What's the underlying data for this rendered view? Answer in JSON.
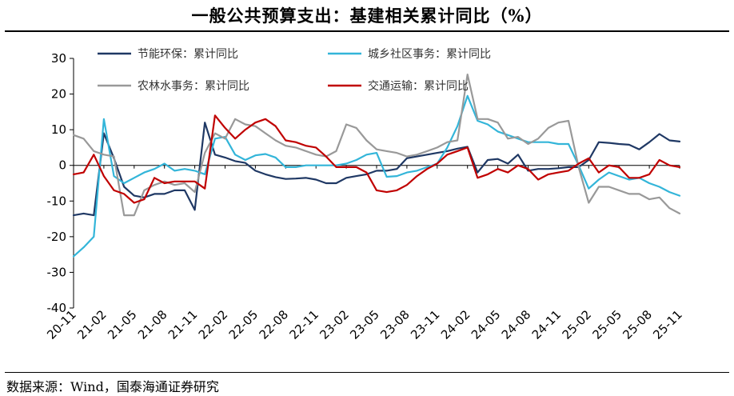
{
  "title": "一般公共预算支出：基建相关累计同比（%）",
  "source": "数据来源：Wind，国泰海通证券研究",
  "chart_data": {
    "type": "line",
    "ylim": [
      -40,
      30
    ],
    "yticks": [
      30,
      20,
      10,
      0,
      -10,
      -20,
      -30,
      -40
    ],
    "x": [
      "20-11",
      "20-12",
      "21-01",
      "21-02",
      "21-03",
      "21-04",
      "21-05",
      "21-06",
      "21-07",
      "21-08",
      "21-09",
      "21-10",
      "21-11",
      "21-12",
      "22-01",
      "22-02",
      "22-03",
      "22-04",
      "22-05",
      "22-06",
      "22-07",
      "22-08",
      "22-09",
      "22-10",
      "22-11",
      "22-12",
      "23-01",
      "23-02",
      "23-03",
      "23-04",
      "23-05",
      "23-06",
      "23-07",
      "23-08",
      "23-09",
      "23-10",
      "23-11",
      "23-12",
      "24-01",
      "24-02",
      "24-03",
      "24-04",
      "24-05",
      "24-06",
      "24-07",
      "24-08",
      "24-09",
      "24-10",
      "24-11",
      "24-12",
      "25-01",
      "25-02",
      "25-03",
      "25-04",
      "25-05",
      "25-06",
      "25-07",
      "25-08",
      "25-09",
      "25-10",
      "25-11"
    ],
    "xtick_labels": [
      "20-11",
      "21-02",
      "21-05",
      "21-08",
      "21-11",
      "22-02",
      "22-05",
      "22-08",
      "22-11",
      "23-02",
      "23-05",
      "23-08",
      "23-11",
      "24-02",
      "24-05",
      "24-08",
      "24-11",
      "25-02",
      "25-05",
      "25-08",
      "25-11"
    ],
    "legend": "top",
    "grid": false,
    "series": [
      {
        "name": "节能环保：累计同比",
        "color": "#1f3864",
        "values": [
          -14,
          -13.5,
          -14,
          9,
          2,
          -6,
          -8.5,
          -9,
          -8,
          -8,
          -7,
          -7,
          -12.5,
          12,
          3,
          2.2,
          1.2,
          0.7,
          -1.5,
          -2.5,
          -3.3,
          -3.8,
          -3.7,
          -3.5,
          -4,
          -5,
          -5,
          -3.5,
          -3,
          -2.5,
          -1.5,
          -1.5,
          -1,
          2,
          2.5,
          3,
          3.5,
          4,
          4.7,
          5.2,
          -2,
          1.5,
          1.8,
          0.5,
          3,
          -1.5,
          -1,
          -1,
          -0.8,
          -0.5,
          -0.5,
          1.5,
          6.5,
          6.3,
          6,
          5.8,
          4.5,
          6.5,
          8.8,
          7,
          6.7
        ]
      },
      {
        "name": "城乡社区事务：累计同比",
        "color": "#33b5d9",
        "values": [
          -25.5,
          -23,
          -20,
          13,
          -3,
          -5,
          -3.5,
          -2,
          -1,
          0.5,
          -1.5,
          -1,
          -1.5,
          -2.5,
          7.5,
          8,
          3,
          1.5,
          2.8,
          3.2,
          2.2,
          -0.5,
          -0.5,
          0,
          0,
          0,
          0,
          0.5,
          1.5,
          3,
          3.5,
          -3.2,
          -3,
          -2,
          -1.5,
          -0.5,
          0.5,
          5,
          11,
          19.5,
          12.5,
          11.5,
          9.5,
          8.5,
          7.5,
          6.5,
          6.5,
          6.5,
          6,
          6,
          0,
          -6.5,
          -4,
          -2,
          -3,
          -4,
          -3.5,
          -5,
          -6,
          -7.5,
          -8.5
        ]
      },
      {
        "name": "农林水事务：累计同比",
        "color": "#999999",
        "values": [
          8.5,
          7.5,
          4,
          3,
          2.5,
          -14,
          -14,
          -7,
          -5.5,
          -4.5,
          -5.5,
          -5,
          -7.5,
          3.5,
          9,
          7.5,
          13,
          11.5,
          11,
          9,
          7,
          5.5,
          5,
          4,
          3,
          2.5,
          4,
          11.5,
          10.5,
          7,
          4.5,
          4,
          3.5,
          2.5,
          3,
          4,
          5,
          6.5,
          7,
          25.5,
          13,
          13,
          12,
          7.5,
          8,
          6,
          7.5,
          10.5,
          12,
          12.5,
          -0.5,
          -10.5,
          -6,
          -6,
          -7,
          -8,
          -8,
          -9.5,
          -9,
          -12,
          -13.5
        ]
      },
      {
        "name": "交通运输：累计同比",
        "color": "#c00000",
        "values": [
          -2.5,
          -2,
          3,
          -3,
          -7,
          -8,
          -10.5,
          -9.5,
          -3.5,
          -5,
          -4.5,
          -4.5,
          -4.5,
          -6.5,
          14,
          10.5,
          7.5,
          10,
          12,
          13,
          11,
          7,
          6.5,
          5.5,
          5,
          2.5,
          -0.5,
          -0.5,
          -0.5,
          -2,
          -7,
          -7.5,
          -7,
          -5.5,
          -3,
          -1,
          0.5,
          3,
          4,
          5,
          -3.5,
          -2.5,
          -1,
          -2,
          0,
          -1,
          -4,
          -2.5,
          -2,
          -1.5,
          0.5,
          2,
          -2,
          0,
          -0.5,
          -3.5,
          -3.5,
          -2.5,
          1.5,
          0,
          -0.5
        ]
      }
    ]
  }
}
